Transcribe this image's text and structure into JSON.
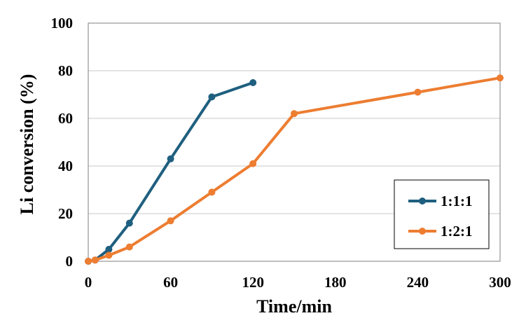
{
  "chart_data": {
    "type": "line",
    "title": "",
    "xlabel": "Time/min",
    "ylabel": "Li conversion (%)",
    "xlim": [
      0,
      300
    ],
    "ylim": [
      0,
      100
    ],
    "xticks": [
      0,
      60,
      120,
      180,
      240,
      300
    ],
    "yticks": [
      0,
      20,
      40,
      60,
      80,
      100
    ],
    "grid": "horizontal",
    "legend_position": "right",
    "series": [
      {
        "name": "1:1:1",
        "color": "#1f5f7f",
        "x": [
          0,
          5,
          15,
          30,
          60,
          90,
          120
        ],
        "y": [
          0,
          0.5,
          5,
          16,
          43,
          69,
          75
        ]
      },
      {
        "name": "1:2:1",
        "color": "#ed7d31",
        "x": [
          0,
          5,
          15,
          30,
          60,
          90,
          120,
          150,
          240,
          300
        ],
        "y": [
          0,
          0.5,
          2.5,
          6,
          17,
          29,
          41,
          62,
          71,
          77
        ]
      }
    ]
  }
}
